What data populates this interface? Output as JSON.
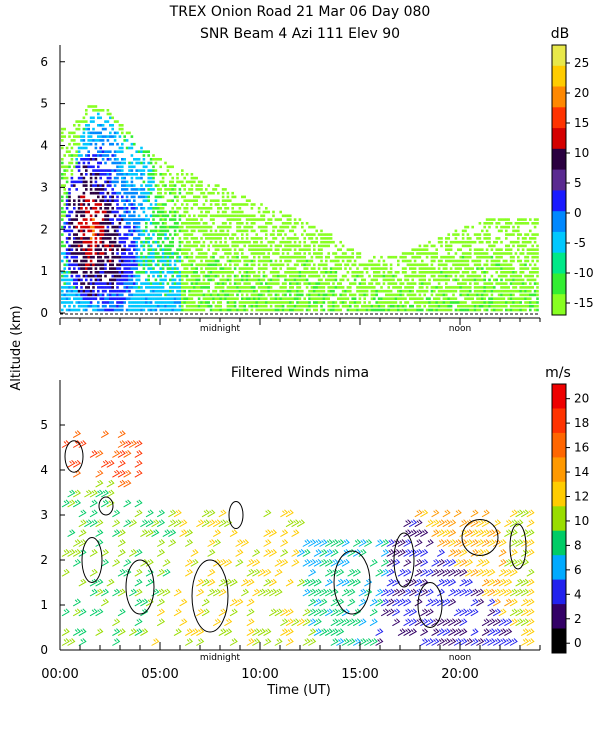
{
  "titles": {
    "line1": "TREX Onion Road  21 Mar 06 Day 080",
    "line2": "SNR Beam 4 Azi 111 Elev 90",
    "panel2": "Filtered Winds nima"
  },
  "shared_axes": {
    "ylabel": "Altitude (km)",
    "xlabel": "Time (UT)",
    "x_tick_labels": [
      "00:00",
      "05:00",
      "10:00",
      "15:00",
      "20:00"
    ],
    "x_inner_labels": [
      "midnight",
      "noon"
    ]
  },
  "colorbars": {
    "snr": {
      "unit": "dB",
      "tick_labels": [
        "25",
        "20",
        "15",
        "10",
        "5",
        "0",
        "-5",
        "-10",
        "-15"
      ],
      "colors": [
        "#e8e84a",
        "#ffcc00",
        "#ff8800",
        "#ff3300",
        "#d40000",
        "#2a0040",
        "#5a2a90",
        "#1a1aff",
        "#0088ff",
        "#00c8ff",
        "#00e888",
        "#33ee33",
        "#88ff22"
      ]
    },
    "wind": {
      "unit": "m/s",
      "tick_labels": [
        "20",
        "18",
        "16",
        "14",
        "12",
        "10",
        "8",
        "6",
        "4",
        "2",
        "0"
      ],
      "colors": [
        "#ee0000",
        "#ff3300",
        "#ff6600",
        "#ff9900",
        "#ffcc00",
        "#99dd00",
        "#00cc66",
        "#00aaff",
        "#2222ee",
        "#330066",
        "#000000"
      ]
    }
  },
  "chart_data": [
    {
      "type": "heatmap",
      "title": "SNR Beam 4 Azi 111 Elev 90",
      "xlabel": "Time (UT)",
      "ylabel": "Altitude (km)",
      "xlim": [
        0,
        24
      ],
      "ylim": [
        0,
        6.4
      ],
      "y_ticks": [
        0,
        1,
        2,
        3,
        4,
        5,
        6
      ],
      "colorbar_range_db": [
        -15,
        29
      ],
      "echo_top_km": [
        [
          0.5,
          4.4
        ],
        [
          1.5,
          5.0
        ],
        [
          2.5,
          4.8
        ],
        [
          4.0,
          4.0
        ],
        [
          5.5,
          3.5
        ],
        [
          7.0,
          3.2
        ],
        [
          9.0,
          2.8
        ],
        [
          11.0,
          2.4
        ],
        [
          13.0,
          2.0
        ],
        [
          15.0,
          1.4
        ],
        [
          17.0,
          1.4
        ],
        [
          19.0,
          1.8
        ],
        [
          21.0,
          2.2
        ],
        [
          23.0,
          2.3
        ]
      ],
      "echo_core_db": [
        [
          1.5,
          2.0,
          20
        ],
        [
          2.5,
          1.5,
          15
        ],
        [
          2.0,
          3.0,
          10
        ],
        [
          3.5,
          2.5,
          5
        ]
      ]
    },
    {
      "type": "scatter",
      "title": "Filtered Winds nima",
      "xlabel": "Time (UT)",
      "ylabel": "Altitude (km)",
      "xlim": [
        0,
        24
      ],
      "ylim": [
        0,
        6
      ],
      "y_ticks": [
        0,
        1,
        2,
        3,
        4,
        5
      ],
      "x_ticks": [
        0,
        5,
        10,
        15,
        20
      ],
      "colorbar_range_ms": [
        0,
        21
      ],
      "wind_speed_bands_ms": [
        [
          0.5,
          4.5,
          18
        ],
        [
          3.0,
          4.2,
          18
        ],
        [
          2.0,
          3.0,
          10
        ],
        [
          9.0,
          3.0,
          12
        ],
        [
          10.0,
          1.0,
          12
        ],
        [
          14.0,
          1.5,
          8
        ],
        [
          18.0,
          1.2,
          4
        ],
        [
          21.0,
          2.7,
          14
        ],
        [
          23.0,
          2.8,
          12
        ]
      ]
    }
  ]
}
